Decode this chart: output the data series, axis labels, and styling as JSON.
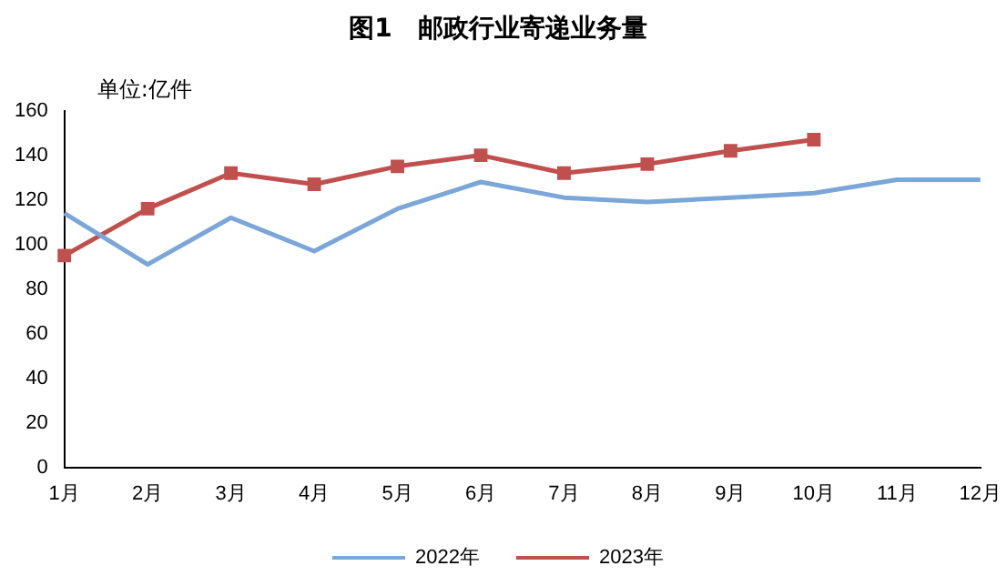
{
  "chart_data": {
    "type": "line",
    "title": "图1　邮政行业寄递业务量",
    "annotations": [
      "单位:亿件"
    ],
    "categories": [
      "1月",
      "2月",
      "3月",
      "4月",
      "5月",
      "6月",
      "7月",
      "8月",
      "9月",
      "10月",
      "11月",
      "12月"
    ],
    "series": [
      {
        "name": "2022年",
        "color": "#7aa6d8",
        "marker": "none",
        "values": [
          114,
          91,
          112,
          97,
          116,
          128,
          121,
          119,
          121,
          123,
          129,
          129
        ]
      },
      {
        "name": "2023年",
        "color": "#c0504d",
        "marker": "square",
        "values": [
          95,
          116,
          132,
          127,
          135,
          140,
          132,
          136,
          142,
          147,
          null,
          null
        ]
      }
    ],
    "ylim": [
      0,
      160
    ],
    "yticks": [
      0,
      20,
      40,
      60,
      80,
      100,
      120,
      140,
      160
    ],
    "grid": false,
    "legend": "bottom",
    "line_style": "solid"
  }
}
